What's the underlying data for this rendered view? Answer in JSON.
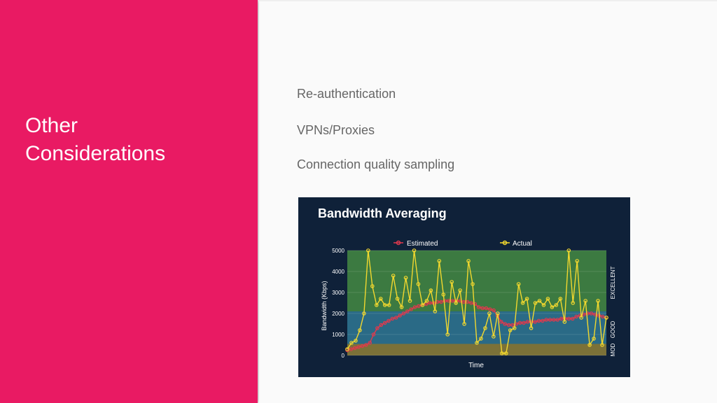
{
  "slide": {
    "title_line1": "Other",
    "title_line2": "Considerations",
    "bullets": [
      "Re-authentication",
      "VPNs/Proxies",
      "Connection quality sampling"
    ]
  },
  "colors": {
    "accent": "#e91a63",
    "chart_bg": "#0f2139",
    "band_excellent": "#3c7a41",
    "band_good": "#2a6a86",
    "band_mod": "#7b7138",
    "estimated": "#e0394d",
    "actual": "#f2d82e"
  },
  "chart_data": {
    "type": "line",
    "title": "Bandwidth Averaging",
    "xlabel": "Time",
    "ylabel": "Bandwidth (Kbps)",
    "ylim": [
      0,
      5000
    ],
    "yticks": [
      0,
      1000,
      2000,
      3000,
      4000,
      5000
    ],
    "bands": [
      {
        "label": "MOD",
        "from": 0,
        "to": 550
      },
      {
        "label": "GOOD",
        "from": 550,
        "to": 2100
      },
      {
        "label": "EXCELLENT",
        "from": 2100,
        "to": 5000
      }
    ],
    "legend": "top",
    "series": [
      {
        "name": "Estimated",
        "color": "#e0394d",
        "values": [
          250,
          300,
          350,
          400,
          450,
          500,
          600,
          1000,
          1300,
          1450,
          1550,
          1650,
          1750,
          1800,
          1900,
          2000,
          2100,
          2200,
          2300,
          2350,
          2400,
          2450,
          2500,
          2500,
          2550,
          2550,
          2600,
          2600,
          2600,
          2600,
          2600,
          2550,
          2550,
          2500,
          2450,
          2300,
          2250,
          2250,
          2200,
          2150,
          1900,
          1600,
          1500,
          1450,
          1450,
          1500,
          1550,
          1550,
          1600,
          1600,
          1600,
          1650,
          1650,
          1700,
          1700,
          1700,
          1700,
          1750,
          1750,
          1750,
          1750,
          1850,
          1900,
          1950,
          2000,
          2000,
          1950,
          1900,
          1850,
          1800
        ]
      },
      {
        "name": "Actual",
        "color": "#f2d82e",
        "values": [
          300,
          600,
          700,
          1200,
          2000,
          5000,
          3300,
          2400,
          2700,
          2400,
          2400,
          3800,
          2700,
          2300,
          3700,
          2600,
          5000,
          3400,
          2400,
          2600,
          3100,
          2100,
          4500,
          2900,
          1000,
          3500,
          2500,
          3100,
          1500,
          4500,
          3400,
          600,
          800,
          1300,
          2000,
          900,
          2000,
          100,
          100,
          1200,
          1300,
          3400,
          2500,
          2700,
          1300,
          2500,
          2600,
          2400,
          2700,
          2300,
          2400,
          2700,
          1600,
          5000,
          2500,
          4500,
          1800,
          2600,
          500,
          800,
          2600,
          500,
          1800
        ]
      }
    ]
  }
}
